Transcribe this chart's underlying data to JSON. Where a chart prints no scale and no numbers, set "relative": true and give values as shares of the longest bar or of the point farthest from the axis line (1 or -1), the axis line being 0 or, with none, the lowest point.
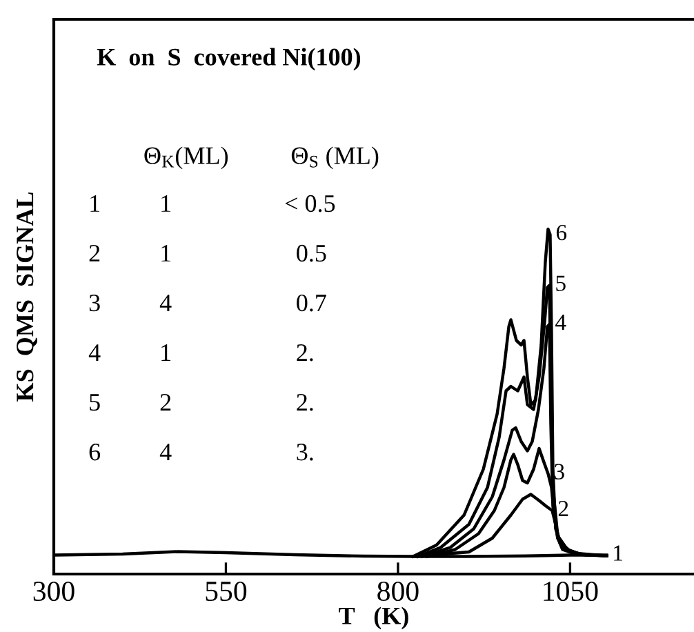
{
  "chart_data": {
    "type": "line",
    "relative": true,
    "title": "K  on  S  covered Ni(100)",
    "xlabel": "T   (K)",
    "ylabel": "KS  QMS  SIGNAL",
    "xlim": [
      300,
      1230
    ],
    "xticks": [
      300,
      550,
      800,
      1050
    ],
    "grid": false,
    "legend": false,
    "marker": "none",
    "line_style": "solid",
    "tick_labels": "x",
    "series": [
      {
        "name": "1",
        "color": "#000000",
        "x": [
          300,
          400,
          480,
          550,
          650,
          750,
          822,
          900,
          960,
          1000,
          1050,
          1103
        ],
        "values": [
          0.055,
          0.058,
          0.065,
          0.062,
          0.056,
          0.052,
          0.051,
          0.051,
          0.052,
          0.053,
          0.055,
          0.055
        ]
      },
      {
        "name": "2",
        "color": "#000000",
        "x": [
          822,
          903,
          937,
          964,
          981,
          993,
          1005,
          1015,
          1024,
          1029,
          1035,
          1052,
          1073,
          1103
        ],
        "values": [
          0.051,
          0.064,
          0.104,
          0.171,
          0.217,
          0.231,
          0.213,
          0.197,
          0.184,
          0.144,
          0.091,
          0.064,
          0.055,
          0.053
        ]
      },
      {
        "name": "3",
        "color": "#000000",
        "x": [
          842,
          883,
          917,
          940,
          954,
          964,
          968,
          974,
          981,
          988,
          997,
          1005,
          1012,
          1018,
          1023,
          1027,
          1032,
          1039,
          1059,
          1103
        ],
        "values": [
          0.051,
          0.071,
          0.117,
          0.184,
          0.251,
          0.331,
          0.347,
          0.317,
          0.271,
          0.264,
          0.304,
          0.364,
          0.324,
          0.291,
          0.251,
          0.171,
          0.104,
          0.071,
          0.057,
          0.053
        ]
      },
      {
        "name": "4",
        "color": "#000000",
        "x": [
          835,
          876,
          910,
          937,
          954,
          966,
          971,
          979,
          988,
          995,
          1004,
          1012,
          1017,
          1020,
          1022,
          1025,
          1032,
          1046,
          1066,
          1103
        ],
        "values": [
          0.051,
          0.077,
          0.131,
          0.224,
          0.331,
          0.417,
          0.424,
          0.384,
          0.357,
          0.384,
          0.477,
          0.597,
          0.717,
          0.724,
          0.437,
          0.197,
          0.104,
          0.071,
          0.057,
          0.053
        ]
      },
      {
        "name": "5",
        "color": "#000000",
        "x": [
          829,
          862,
          903,
          930,
          947,
          957,
          964,
          974,
          983,
          988,
          997,
          1005,
          1013,
          1017,
          1020,
          1022,
          1025,
          1032,
          1046,
          1066,
          1103
        ],
        "values": [
          0.051,
          0.077,
          0.144,
          0.251,
          0.397,
          0.531,
          0.544,
          0.531,
          0.571,
          0.491,
          0.477,
          0.571,
          0.731,
          0.831,
          0.837,
          0.544,
          0.251,
          0.111,
          0.071,
          0.057,
          0.053
        ]
      },
      {
        "name": "6",
        "color": "#000000",
        "x": [
          822,
          856,
          896,
          924,
          944,
          954,
          961,
          964,
          972,
          979,
          983,
          988,
          993,
          1000,
          1008,
          1014,
          1018,
          1021,
          1023,
          1025,
          1029,
          1039,
          1059,
          1103
        ],
        "values": [
          0.051,
          0.084,
          0.171,
          0.304,
          0.464,
          0.597,
          0.717,
          0.737,
          0.677,
          0.664,
          0.677,
          0.571,
          0.491,
          0.504,
          0.664,
          0.904,
          1.0,
          0.984,
          0.704,
          0.304,
          0.131,
          0.077,
          0.06,
          0.053
        ]
      }
    ],
    "annotations": [
      "Θ$_{K}$(ML)",
      "Θ$_{S}$ (ML)",
      "1",
      "1",
      "< 0.5",
      "2",
      "1",
      "0.5",
      "3",
      "4",
      "0.7",
      "4",
      "1",
      "2.",
      "5",
      "2",
      "2.",
      "6",
      "4",
      "3."
    ]
  }
}
